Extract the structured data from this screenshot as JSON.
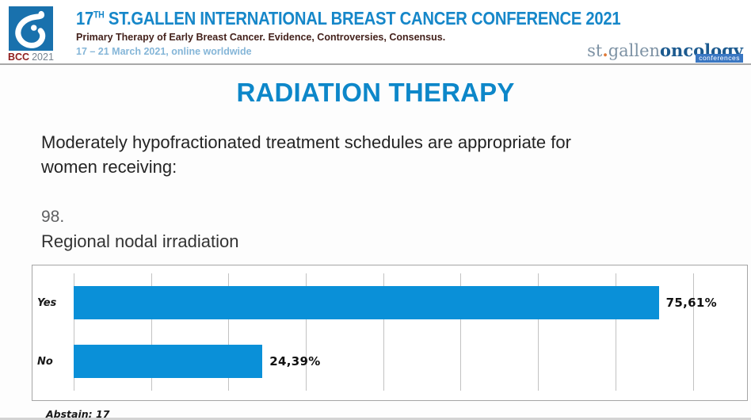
{
  "header": {
    "logo": {
      "bcc": "BCC",
      "year": "2021"
    },
    "title_num": "17",
    "title_sup": "TH",
    "title_rest": " ST.GALLEN INTERNATIONAL BREAST CANCER CONFERENCE 2021",
    "subtitle": "Primary Therapy of Early Breast Cancer. Evidence, Controversies, Consensus.",
    "date_line": "17 – 21 March 2021, online worldwide",
    "brand": {
      "prefix": "st",
      "dot": ".",
      "city": "gallen",
      "word": "oncology",
      "tagline": "conferences"
    }
  },
  "main": {
    "section_title": "RADIATION THERAPY",
    "question_line1": "Moderately hypofractionated treatment schedules are appropriate for",
    "question_line2": "women receiving:",
    "item_number": "98.",
    "item_text": "Regional nodal irradiation",
    "abstain": "Abstain: 17"
  },
  "chart_data": {
    "type": "bar",
    "orientation": "horizontal",
    "title": "Regional nodal irradiation",
    "categories": [
      "Yes",
      "No"
    ],
    "values": [
      75.61,
      24.39
    ],
    "value_labels": [
      "75,61%",
      "24,39%"
    ],
    "abstain_count": 17,
    "xlim": [
      0,
      80
    ],
    "gridline_interval": 10,
    "grid": true,
    "bar_color": "#0a90d8",
    "legend_position": "none"
  },
  "colors": {
    "title_blue": "#0d87c9",
    "header_blue": "#1687c9",
    "bar_blue": "#0a90d8",
    "subtitle_maroon": "#44221c",
    "bcc_red": "#8f1d1d",
    "date_light_blue": "#85b6d8",
    "brand_slate": "#7d92a4",
    "brand_dark_blue": "#1c5a8f",
    "ribbon_blue": "#3a77c2"
  }
}
